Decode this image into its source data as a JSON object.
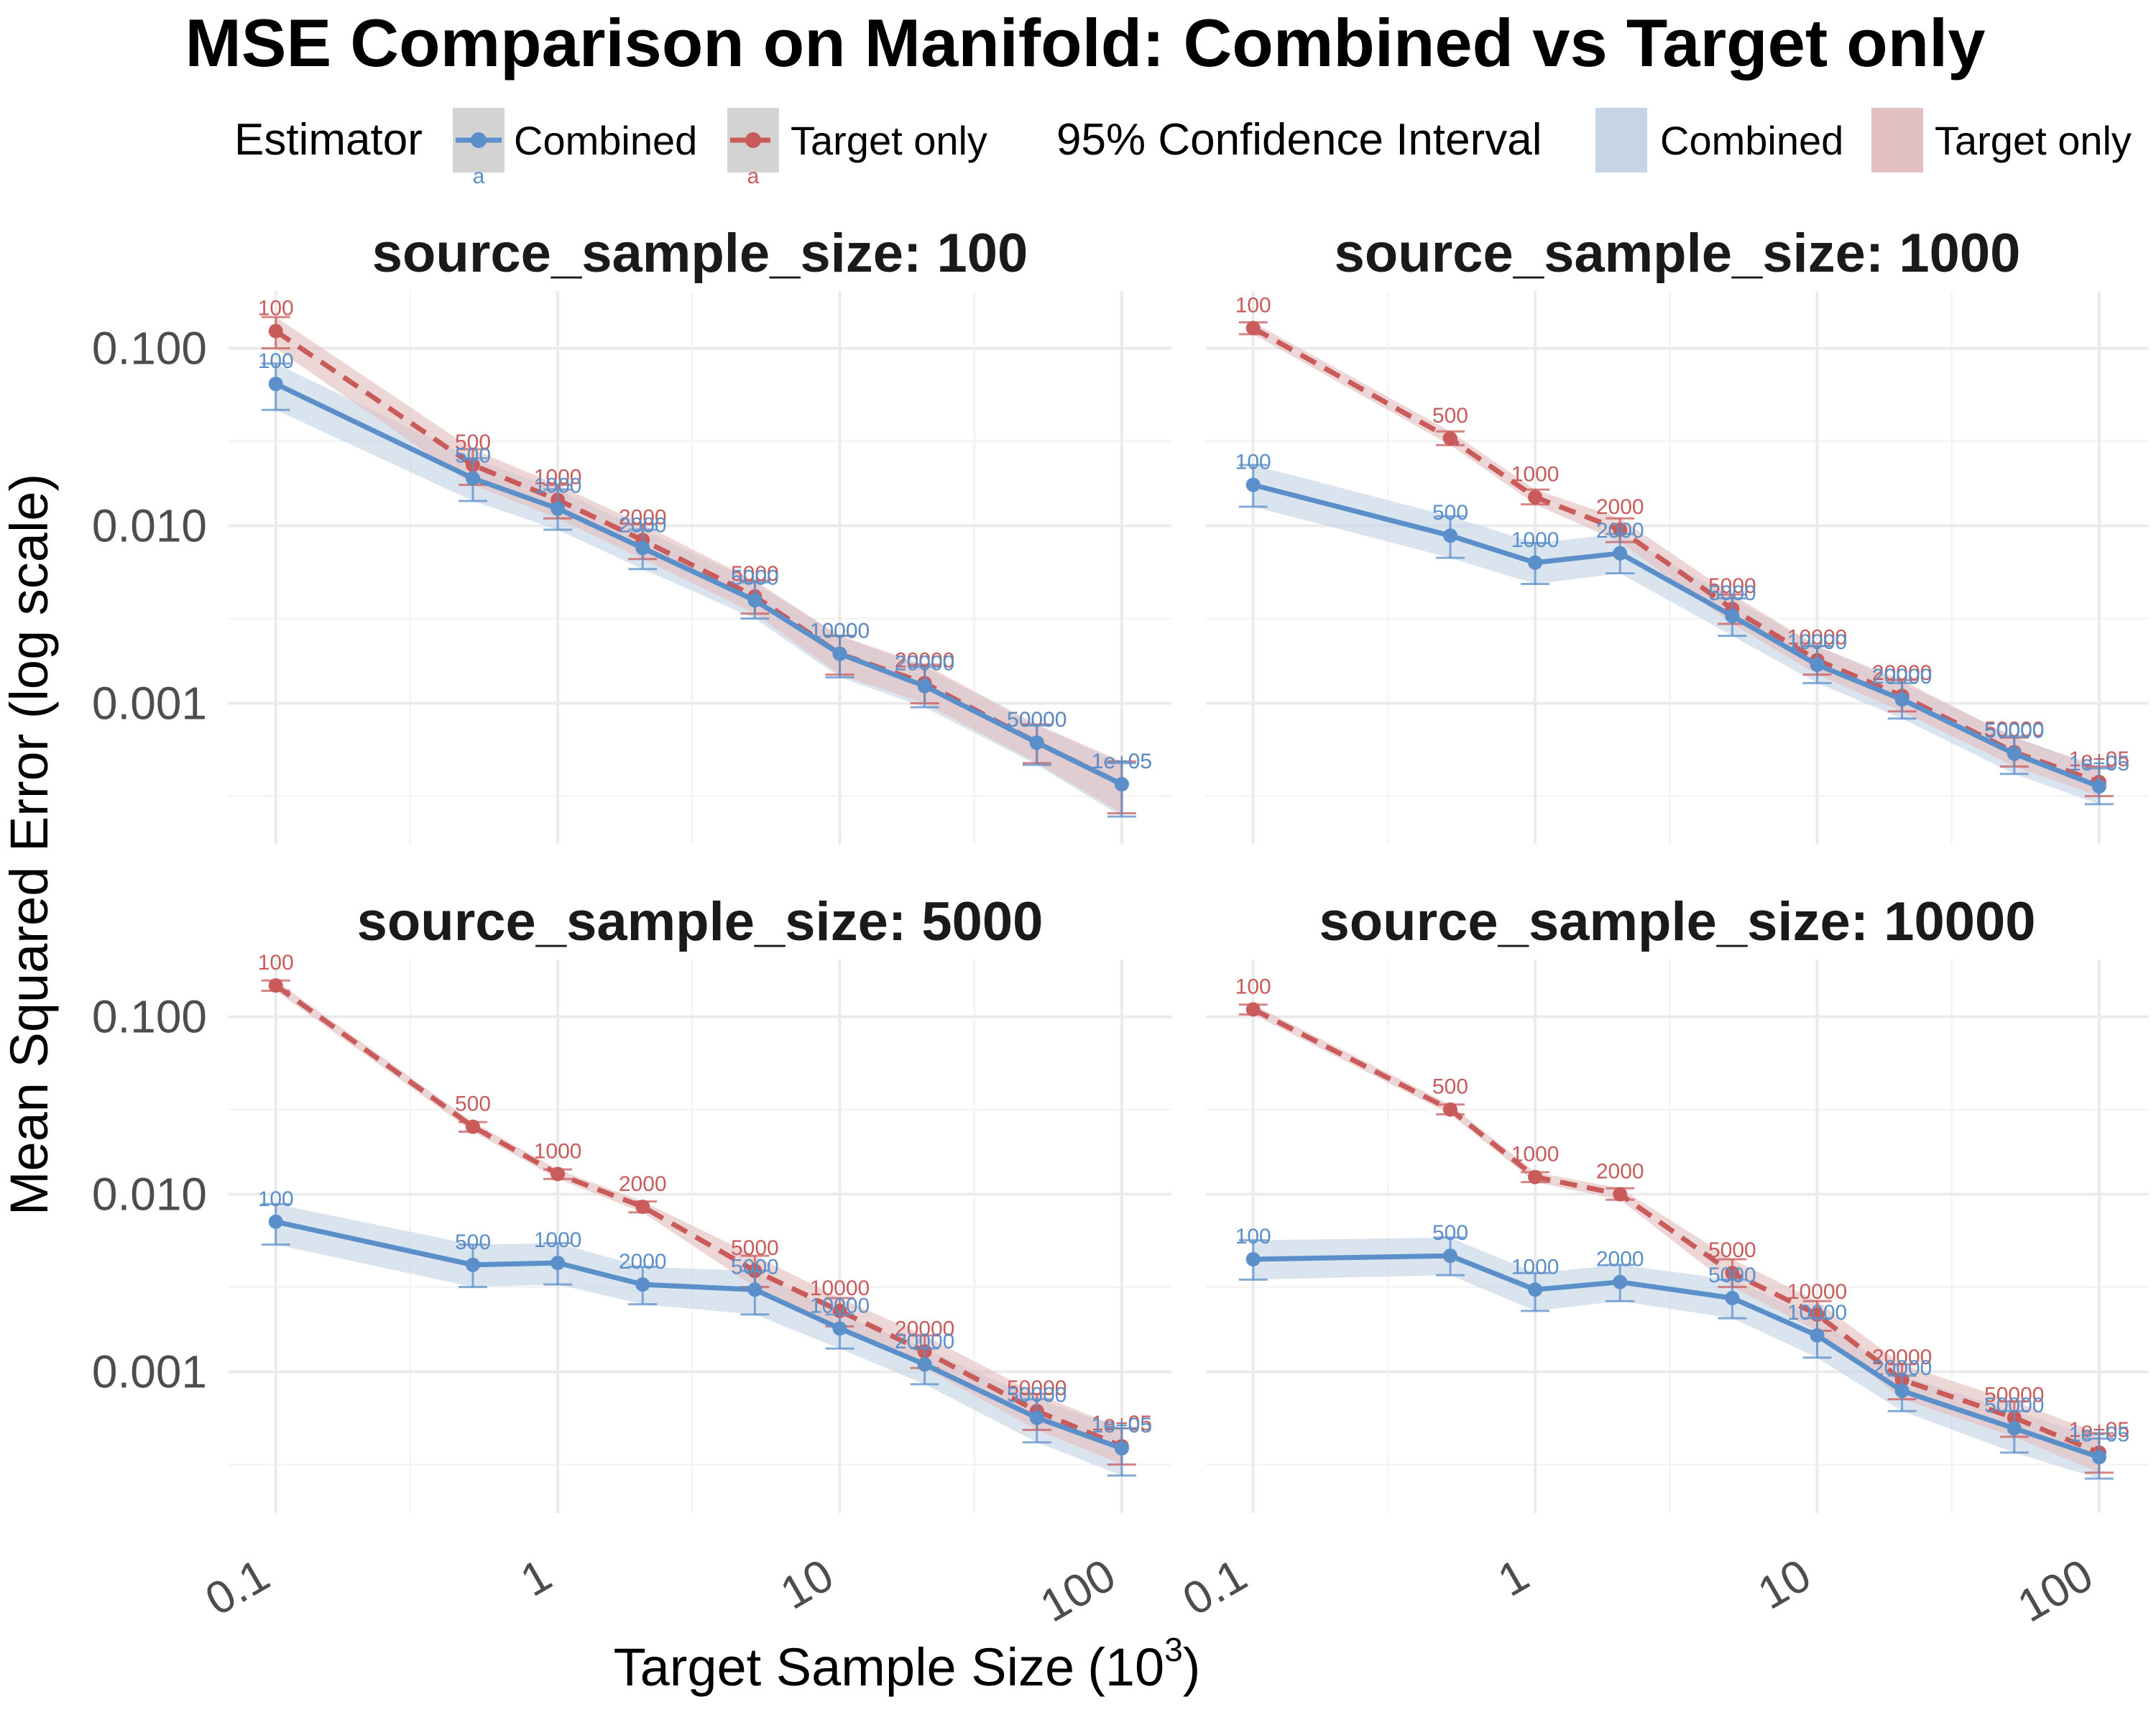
{
  "chart_data": {
    "type": "line",
    "title": "MSE Comparison on Manifold: Combined vs Target only",
    "xlabel": "Target Sample Size",
    "xlabel_unit_base": "10",
    "xlabel_unit_exp": "3",
    "ylabel": "Mean Squared Error (log scale)",
    "x_scale": "log",
    "y_scale": "log",
    "xlim": [
      0.068,
      150
    ],
    "ylim": [
      0.00016,
      0.21
    ],
    "x_ticks": [
      0.1,
      1,
      10,
      100
    ],
    "x_tick_labels": [
      "0.1",
      "1",
      "10",
      "100"
    ],
    "y_ticks": [
      0.001,
      0.01,
      0.1
    ],
    "y_tick_labels": [
      "0.001",
      "0.010",
      "0.100"
    ],
    "grid": true,
    "legend_position": "top",
    "legend": {
      "estimator_title": "Estimator",
      "ci_title": "95% Confidence Interval",
      "key_glyph_text": "a",
      "entries": [
        "Combined",
        "Target only"
      ]
    },
    "colors": {
      "Combined": "#5b8fc9",
      "Target only": "#c95b5b",
      "Combined_ci": "#c6d5e6",
      "Target only_ci": "#e3c0c0"
    },
    "x": [
      0.1,
      0.5,
      1,
      2,
      5,
      10,
      20,
      50,
      100
    ],
    "point_labels": [
      "100",
      "500",
      "1000",
      "2000",
      "5000",
      "10000",
      "20000",
      "50000",
      "1e+05"
    ],
    "panels": [
      {
        "title": "source_sample_size: 100",
        "series": [
          {
            "name": "Combined",
            "values": [
              0.063,
              0.0185,
              0.0125,
              0.0075,
              0.0038,
              0.0019,
              0.00125,
              0.0006,
              0.00035
            ],
            "lower": [
              0.045,
              0.0138,
              0.0095,
              0.0057,
              0.003,
              0.0014,
              0.00095,
              0.00045,
              0.00023
            ],
            "upper": [
              0.082,
              0.024,
              0.016,
              0.0095,
              0.0048,
              0.0024,
              0.0016,
              0.00075,
              0.00046
            ]
          },
          {
            "name": "Target only",
            "values": [
              0.125,
              0.022,
              0.014,
              0.0083,
              0.004,
              0.0019,
              0.0013,
              0.0006,
              0.00035
            ],
            "lower": [
              0.1,
              0.017,
              0.011,
              0.0065,
              0.0032,
              0.00145,
              0.001,
              0.00046,
              0.00024
            ],
            "upper": [
              0.15,
              0.027,
              0.017,
              0.0102,
              0.0049,
              0.0024,
              0.00165,
              0.00076,
              0.00047
            ]
          }
        ]
      },
      {
        "title": "source_sample_size: 1000",
        "series": [
          {
            "name": "Combined",
            "values": [
              0.017,
              0.0088,
              0.0062,
              0.007,
              0.0031,
              0.00165,
              0.00105,
              0.00052,
              0.00034
            ],
            "lower": [
              0.0128,
              0.0066,
              0.0047,
              0.0054,
              0.0024,
              0.0013,
              0.00082,
              0.0004,
              0.00027
            ],
            "upper": [
              0.022,
              0.0113,
              0.008,
              0.009,
              0.0039,
              0.0021,
              0.0013,
              0.00065,
              0.00043
            ]
          },
          {
            "name": "Target only",
            "values": [
              0.13,
              0.031,
              0.0145,
              0.0095,
              0.0034,
              0.00175,
              0.0011,
              0.00053,
              0.00036
            ],
            "lower": [
              0.12,
              0.0285,
              0.0132,
              0.0081,
              0.0028,
              0.00145,
              0.0009,
              0.00044,
              0.0003
            ],
            "upper": [
              0.14,
              0.034,
              0.016,
              0.011,
              0.0041,
              0.0021,
              0.00135,
              0.00064,
              0.00044
            ]
          }
        ]
      },
      {
        "title": "source_sample_size: 5000",
        "series": [
          {
            "name": "Combined",
            "values": [
              0.007,
              0.004,
              0.0041,
              0.0031,
              0.0029,
              0.00175,
              0.0011,
              0.00055,
              0.00037
            ],
            "lower": [
              0.0052,
              0.003,
              0.0031,
              0.0024,
              0.0021,
              0.00135,
              0.00085,
              0.0004,
              0.00026
            ],
            "upper": [
              0.0088,
              0.0052,
              0.0053,
              0.0039,
              0.0037,
              0.0021,
              0.00135,
              0.0007,
              0.00048
            ]
          },
          {
            "name": "Target only",
            "values": [
              0.15,
              0.024,
              0.013,
              0.0085,
              0.0037,
              0.0022,
              0.0013,
              0.0006,
              0.00038
            ],
            "lower": [
              0.14,
              0.0225,
              0.0122,
              0.0079,
              0.003,
              0.0018,
              0.00105,
              0.00047,
              0.0003
            ],
            "upper": [
              0.16,
              0.0255,
              0.0138,
              0.0091,
              0.0045,
              0.0026,
              0.0016,
              0.00075,
              0.00048
            ]
          }
        ]
      },
      {
        "title": "source_sample_size: 10000",
        "series": [
          {
            "name": "Combined",
            "values": [
              0.0043,
              0.0045,
              0.0029,
              0.0032,
              0.0026,
              0.0016,
              0.00078,
              0.00048,
              0.00033
            ],
            "lower": [
              0.0033,
              0.0035,
              0.0022,
              0.0025,
              0.002,
              0.0012,
              0.0006,
              0.00035,
              0.00025
            ],
            "upper": [
              0.0055,
              0.0057,
              0.0036,
              0.004,
              0.0033,
              0.002,
              0.00095,
              0.0006,
              0.00042
            ]
          },
          {
            "name": "Target only",
            "values": [
              0.11,
              0.03,
              0.0125,
              0.01,
              0.0036,
              0.0021,
              0.0009,
              0.00055,
              0.00035
            ],
            "lower": [
              0.103,
              0.0282,
              0.0117,
              0.0093,
              0.003,
              0.0017,
              0.0007,
              0.00043,
              0.00027
            ],
            "upper": [
              0.117,
              0.032,
              0.0133,
              0.0108,
              0.0043,
              0.0025,
              0.0011,
              0.00068,
              0.00045
            ]
          }
        ]
      }
    ]
  }
}
